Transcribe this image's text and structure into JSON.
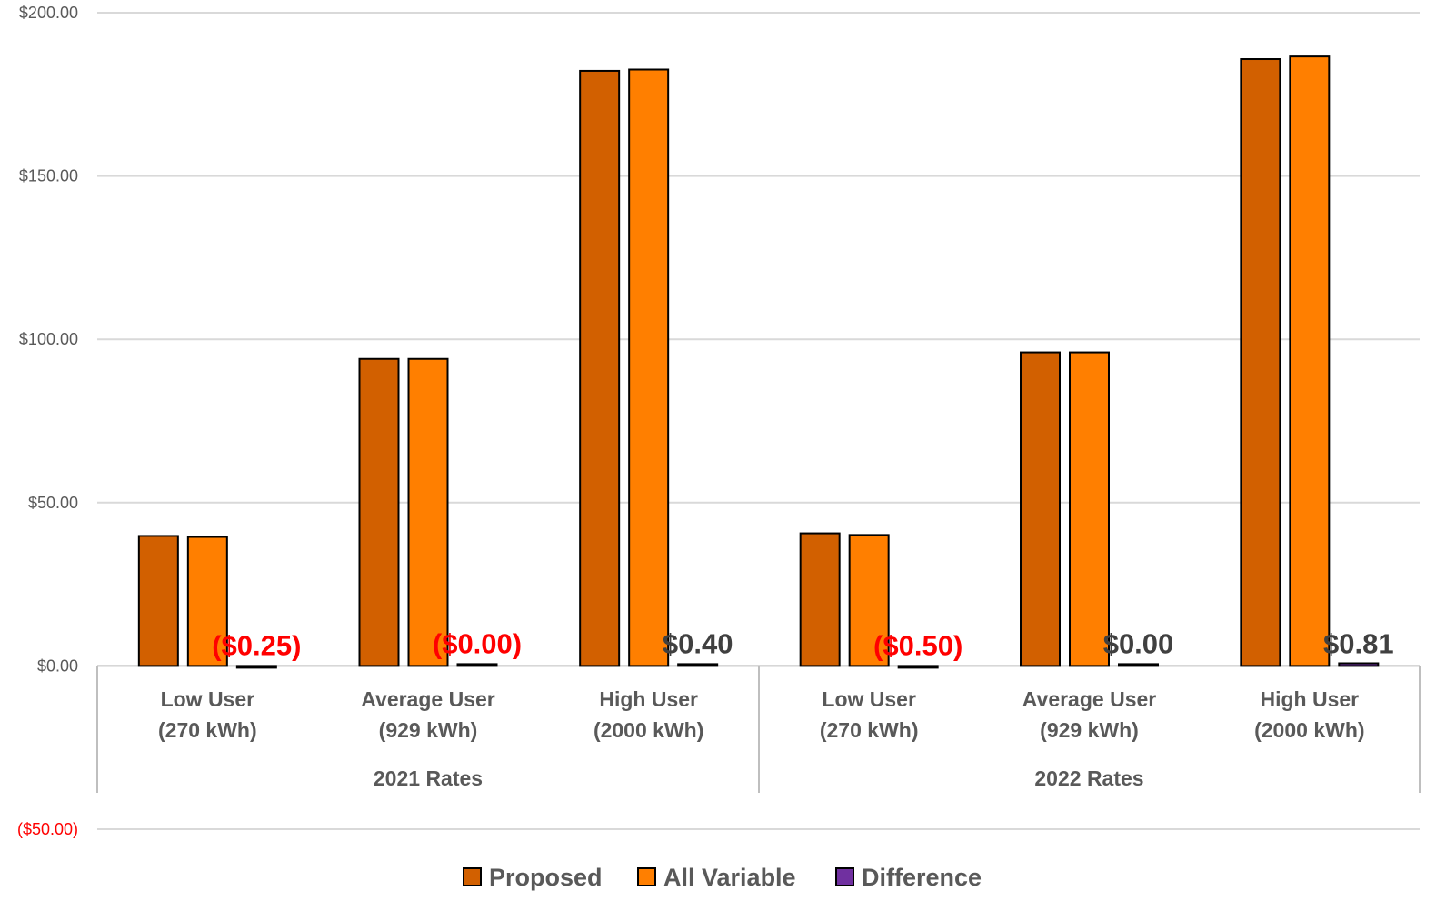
{
  "chart_data": {
    "type": "bar",
    "groups": [
      {
        "label": "2021 Rates",
        "categories": [
          {
            "line1": "Low User",
            "line2": "(270 kWh)"
          },
          {
            "line1": "Average User",
            "line2": "(929 kWh)"
          },
          {
            "line1": "High User",
            "line2": "(2000 kWh)"
          }
        ]
      },
      {
        "label": "2022 Rates",
        "categories": [
          {
            "line1": "Low User",
            "line2": "(270 kWh)"
          },
          {
            "line1": "Average User",
            "line2": "(929 kWh)"
          },
          {
            "line1": "High User",
            "line2": "(2000 kWh)"
          }
        ]
      }
    ],
    "series": [
      {
        "name": "Proposed",
        "color": "#D26000",
        "values": [
          39.8,
          94.0,
          182.2,
          40.6,
          96.0,
          185.8
        ]
      },
      {
        "name": "All Variable",
        "color": "#FF7F00",
        "values": [
          39.5,
          94.0,
          182.6,
          40.1,
          96.0,
          186.6
        ]
      },
      {
        "name": "Difference",
        "color": "#7030A0",
        "values": [
          -0.25,
          -0.0,
          0.4,
          -0.5,
          0.0,
          0.81
        ]
      }
    ],
    "data_labels": [
      "($0.25)",
      "($0.00)",
      "$0.40",
      "($0.50)",
      "$0.00",
      "$0.81"
    ],
    "data_label_colors": [
      "#FF0000",
      "#FF0000",
      "#404040",
      "#FF0000",
      "#404040",
      "#404040"
    ],
    "ylim": [
      -50,
      200
    ],
    "yticks": [
      200,
      150,
      100,
      50,
      0,
      -50
    ],
    "ytick_labels": [
      "$200.00",
      "$150.00",
      "$100.00",
      "$50.00",
      "$0.00",
      "($50.00)"
    ],
    "ytick_colors": [
      "#595959",
      "#595959",
      "#595959",
      "#595959",
      "#595959",
      "#FF0000"
    ],
    "grid": true,
    "legend_position": "bottom",
    "title": "",
    "xlabel": "",
    "ylabel": ""
  }
}
